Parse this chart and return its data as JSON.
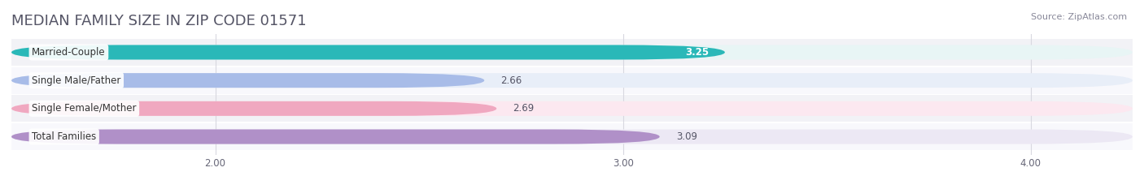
{
  "title": "MEDIAN FAMILY SIZE IN ZIP CODE 01571",
  "source": "Source: ZipAtlas.com",
  "categories": [
    "Married-Couple",
    "Single Male/Father",
    "Single Female/Mother",
    "Total Families"
  ],
  "values": [
    3.25,
    2.66,
    2.69,
    3.09
  ],
  "bar_colors": [
    "#2ab8b8",
    "#a8bce8",
    "#f0a8c0",
    "#b090c8"
  ],
  "bar_bg_colors": [
    "#e8f5f5",
    "#e8eef8",
    "#fce8f0",
    "#ece8f4"
  ],
  "value_inside": [
    true,
    false,
    false,
    false
  ],
  "xmin": 0.0,
  "xdata_min": 2.0,
  "xdata_max": 4.0,
  "xticks": [
    2.0,
    3.0,
    4.0
  ],
  "xtick_labels": [
    "2.00",
    "3.00",
    "4.00"
  ],
  "background_color": "#ffffff",
  "panel_bg": "#f0f0f4",
  "bar_height": 0.52,
  "title_fontsize": 13,
  "label_fontsize": 8.5,
  "value_fontsize": 8.5,
  "tick_fontsize": 8.5,
  "source_fontsize": 8
}
